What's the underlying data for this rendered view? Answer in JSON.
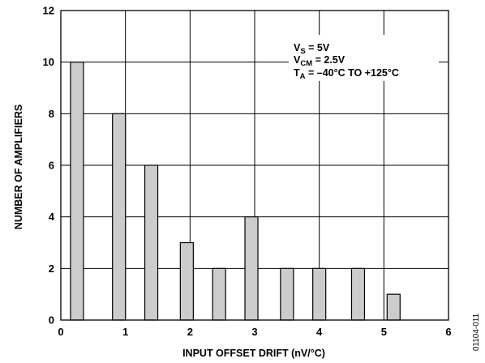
{
  "chart_data": {
    "type": "bar",
    "title": "",
    "xlabel": "INPUT OFFSET DRIFT (nV/°C)",
    "ylabel": "NUMBER OF AMPLIFIERS",
    "xlim": [
      0,
      6
    ],
    "ylim": [
      0,
      12
    ],
    "x_ticks": [
      "0",
      "1",
      "2",
      "3",
      "4",
      "5",
      "6"
    ],
    "y_ticks": [
      "0",
      "2",
      "4",
      "6",
      "8",
      "10",
      "12"
    ],
    "grid": true,
    "bar_color": "#cccccc",
    "x": [
      0.25,
      0.9,
      1.4,
      1.95,
      2.45,
      2.95,
      3.5,
      4.0,
      4.6,
      5.15
    ],
    "values": [
      10,
      8,
      6,
      3,
      2,
      4,
      2,
      2,
      2,
      1
    ],
    "conditions": [
      {
        "main": "V",
        "sub": "S",
        "rest": " = 5V"
      },
      {
        "main": "V",
        "sub": "CM",
        "rest": " = 2.5V"
      },
      {
        "main": "T",
        "sub": "A",
        "rest": " = –40°C TO +125°C"
      }
    ],
    "figure_id": "01104-011"
  }
}
